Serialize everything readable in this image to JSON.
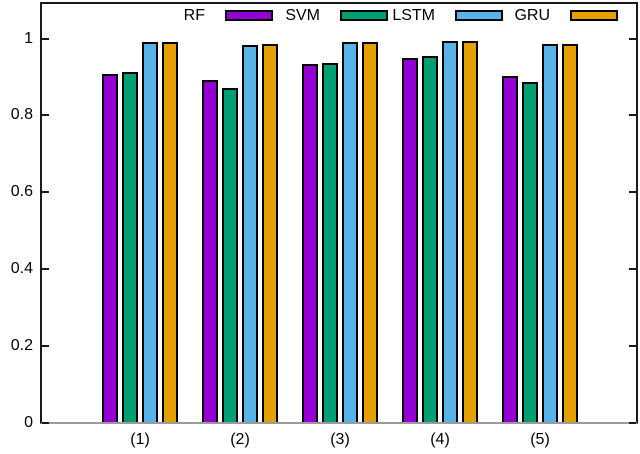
{
  "chart_data": {
    "type": "bar",
    "title": "",
    "xlabel": "",
    "ylabel": "",
    "categories": [
      "(1)",
      "(2)",
      "(3)",
      "(4)",
      "(5)"
    ],
    "series": [
      {
        "name": "RF",
        "color": "#9400d3",
        "values": [
          0.907,
          0.891,
          0.934,
          0.948,
          0.903
        ]
      },
      {
        "name": "SVM",
        "color": "#009e73",
        "values": [
          0.912,
          0.87,
          0.937,
          0.954,
          0.887
        ]
      },
      {
        "name": "LSTM",
        "color": "#56b4e9",
        "values": [
          0.99,
          0.983,
          0.99,
          0.993,
          0.985
        ]
      },
      {
        "name": "GRU",
        "color": "#e69f00",
        "values": [
          0.992,
          0.985,
          0.99,
          0.993,
          0.986
        ]
      }
    ],
    "ylim": [
      0,
      1.09
    ],
    "yticks": {
      "values": [
        0,
        0.2,
        0.4,
        0.6,
        0.8,
        1
      ],
      "labels": [
        "0",
        "0.2",
        "0.4",
        "0.6",
        "0.8",
        "1"
      ]
    },
    "legend": {
      "position": "top-inside",
      "entries": [
        "RF",
        "SVM",
        "LSTM",
        "GRU"
      ]
    },
    "grid": false,
    "colors": {
      "bar_border": "#000000",
      "plot_border": "#1a1a1a",
      "baseline": "#9b9b9b",
      "text": "#000000"
    }
  }
}
